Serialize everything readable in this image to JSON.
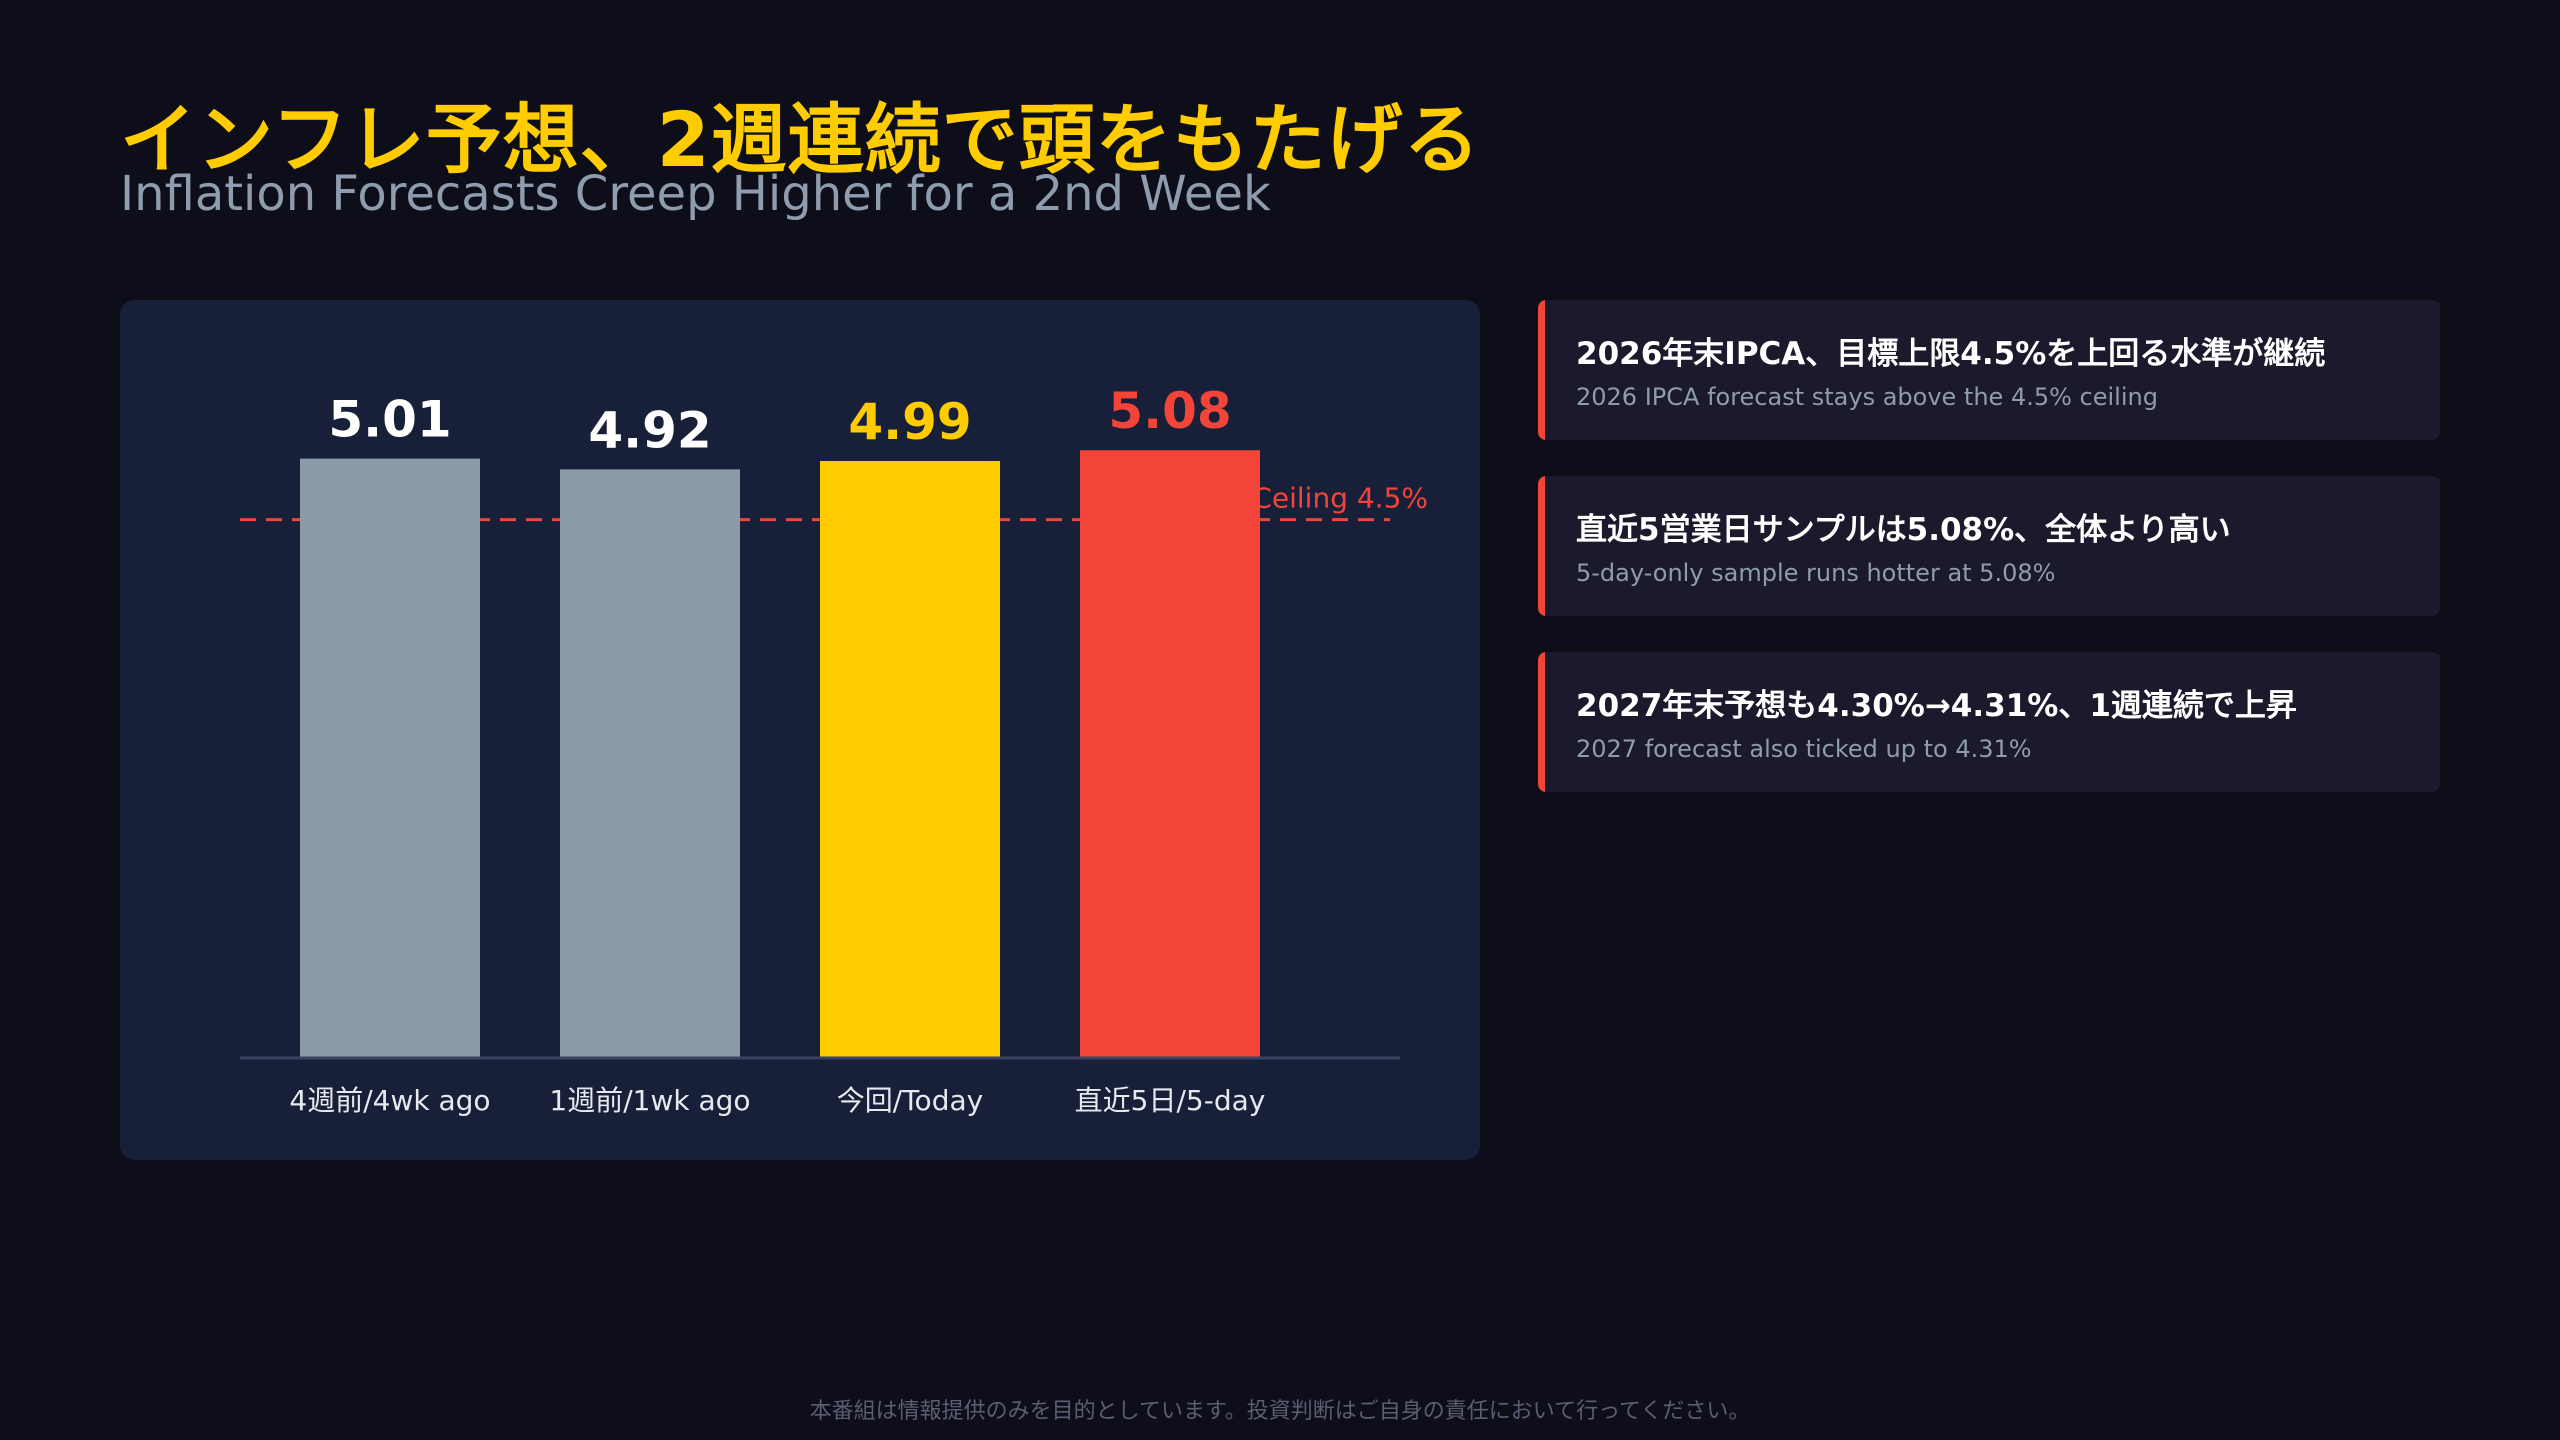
{
  "header": {
    "title": "インフレ予想、2週連続で頭をもたげる",
    "subtitle": "Inflation Forecasts Creep Higher for a 2nd Week"
  },
  "chart_data": {
    "type": "bar",
    "categories": [
      "4週前/4wk ago",
      "1週前/1wk ago",
      "今回/Today",
      "直近5日/5-day"
    ],
    "values": [
      5.01,
      4.92,
      4.99,
      5.08
    ],
    "value_labels": [
      "5.01",
      "4.92",
      "4.99",
      "5.08"
    ],
    "bar_colors": [
      "#8a9aa8",
      "#8a9aa8",
      "#ffcc00",
      "#f24438"
    ],
    "label_colors": [
      "#ffffff",
      "#ffffff",
      "#ffcc00",
      "#f24438"
    ],
    "reference_line": {
      "value": 4.5,
      "label": "Ceiling 4.5%",
      "color": "#f24438"
    },
    "ylim": [
      0,
      5.6
    ],
    "grid": false
  },
  "cards": [
    {
      "title": "2026年末IPCA、目標上限4.5%を上回る水準が継続",
      "subtitle": "2026 IPCA forecast stays above the 4.5% ceiling"
    },
    {
      "title": "直近5営業日サンプルは5.08%、全体より高い",
      "subtitle": "5-day-only sample runs hotter at 5.08%"
    },
    {
      "title": "2027年末予想も4.30%→4.31%、1週連続で上昇",
      "subtitle": "2027 forecast also ticked up to 4.31%"
    }
  ],
  "colors": {
    "background": "#0e0e1a",
    "panel": "#182039",
    "accent": "#ffcc00",
    "alert": "#f24438"
  },
  "footer": {
    "disclaimer": "本番組は情報提供のみを目的としています。投資判断はご自身の責任において行ってください。"
  }
}
